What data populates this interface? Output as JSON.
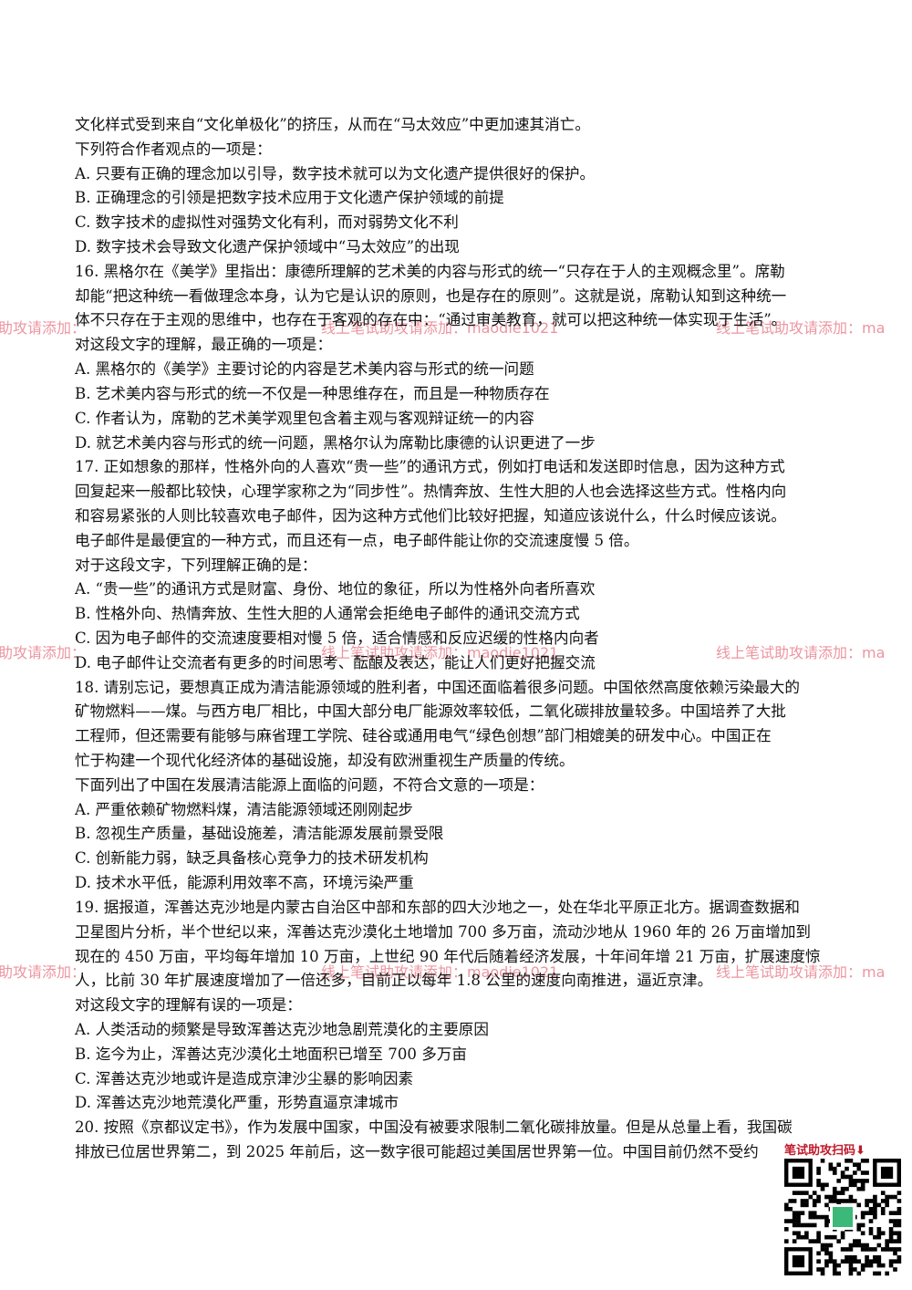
{
  "lines": [
    "文化样式受到来自“文化单极化”的挤压，从而在“马太效应”中更加速其消亡。",
    "下列符合作者观点的一项是：",
    "A. 只要有正确的理念加以引导，数字技术就可以为文化遗产提供很好的保护。",
    "B. 正确理念的引领是把数字技术应用于文化遗产保护领域的前提",
    "C. 数字技术的虚拟性对强势文化有利，而对弱势文化不利",
    "D. 数字技术会导致文化遗产保护领域中“马太效应”的出现",
    "16. 黑格尔在《美学》里指出：康德所理解的艺术美的内容与形式的统一“只存在于人的主观概念里”。席勒",
    "却能“把这种统一看做理念本身，认为它是认识的原则，也是存在的原则”。这就是说，席勒认知到这种统一",
    "体不只存在于主观的思维中，也存在于客观的存在中：“通过审美教育，就可以把这种统一体实现于生活”。",
    "对这段文字的理解，最正确的一项是：",
    "A. 黑格尔的《美学》主要讨论的内容是艺术美内容与形式的统一问题",
    "B. 艺术美内容与形式的统一不仅是一种思维存在，而且是一种物质存在",
    "C. 作者认为，席勒的艺术美学观里包含着主观与客观辩证统一的内容",
    "D. 就艺术美内容与形式的统一问题，黑格尔认为席勒比康德的认识更进了一步",
    "17. 正如想象的那样，性格外向的人喜欢“贵一些”的通讯方式，例如打电话和发送即时信息，因为这种方式",
    "回复起来一般都比较快，心理学家称之为“同步性”。热情奔放、生性大胆的人也会选择这些方式。性格内向",
    "和容易紧张的人则比较喜欢电子邮件，因为这种方式他们比较好把握，知道应该说什么，什么时候应该说。",
    "电子邮件是最便宜的一种方式，而且还有一点，电子邮件能让你的交流速度慢 5 倍。",
    "对于这段文字，下列理解正确的是：",
    "A. “贵一些”的通讯方式是财富、身份、地位的象征，所以为性格外向者所喜欢",
    "B. 性格外向、热情奔放、生性大胆的人通常会拒绝电子邮件的通讯交流方式",
    "C. 因为电子邮件的交流速度要相对慢 5 倍，适合情感和反应迟缓的性格内向者",
    "D. 电子邮件让交流者有更多的时间思考、酝酿及表达，能让人们更好把握交流",
    "18. 请别忘记，要想真正成为清洁能源领域的胜利者，中国还面临着很多问题。中国依然高度依赖污染最大的",
    "矿物燃料——煤。与西方电厂相比，中国大部分电厂能源效率较低，二氧化碳排放量较多。中国培养了大批",
    "工程师，但还需要有能够与麻省理工学院、硅谷或通用电气“绿色创想”部门相媲美的研发中心。中国正在",
    "忙于构建一个现代化经济体的基础设施，却没有欧洲重视生产质量的传统。",
    "下面列出了中国在发展清洁能源上面临的问题，不符合文意的一项是：",
    "A. 严重依赖矿物燃料煤，清洁能源领域还刚刚起步",
    "B. 忽视生产质量，基础设施差，清洁能源发展前景受限",
    "C. 创新能力弱，缺乏具备核心竞争力的技术研发机构",
    "D. 技术水平低，能源利用效率不高，环境污染严重",
    "19. 据报道，浑善达克沙地是内蒙古自治区中部和东部的四大沙地之一，处在华北平原正北方。据调查数据和",
    "卫星图片分析，半个世纪以来，浑善达克沙漠化土地增加 700 多万亩，流动沙地从 1960 年的 26 万亩增加到",
    "现在的 450 万亩，平均每年增加 10 万亩，上世纪 90 年代后随着经济发展，十年间年增 21 万亩，扩展速度惊",
    "人，比前 30 年扩展速度增加了一倍还多，目前正以每年 1.8 公里的速度向南推进，逼近京津。",
    "对这段文字的理解有误的一项是：",
    "A. 人类活动的频繁是导致浑善达克沙地急剧荒漠化的主要原因",
    "B. 迄今为止，浑善达克沙漠化土地面积已增至 700 多万亩",
    "C. 浑善达克沙地或许是造成京津沙尘暴的影响因素",
    "D. 浑善达克沙地荒漠化严重，形势直逼京津城市",
    "20. 按照《京都议定书》，作为发展中国家，中国没有被要求限制二氧化碳排放量。但是从总量上看，我国碳",
    "排放已位居世界第二，到 2025 年前后，这一数字很可能超过美国居世界第一位。中国目前仍然不受约"
  ],
  "watermarks": [
    {
      "left": "助攻请添加：",
      "center": "线上笔试助攻请添加：maodie1021",
      "right": "线上笔试助攻请添加：ma"
    },
    {
      "left": "助攻请添加：",
      "center": "线上笔试助攻请添加：maodie1021",
      "right": "线上笔试助攻请添加：ma"
    },
    {
      "left": "助攻请添加：",
      "center": "线上笔试助攻请添加：maodie1021",
      "right": "线上笔试助攻请添加：ma"
    }
  ],
  "qr_label": "笔试助攻扫码⬇"
}
